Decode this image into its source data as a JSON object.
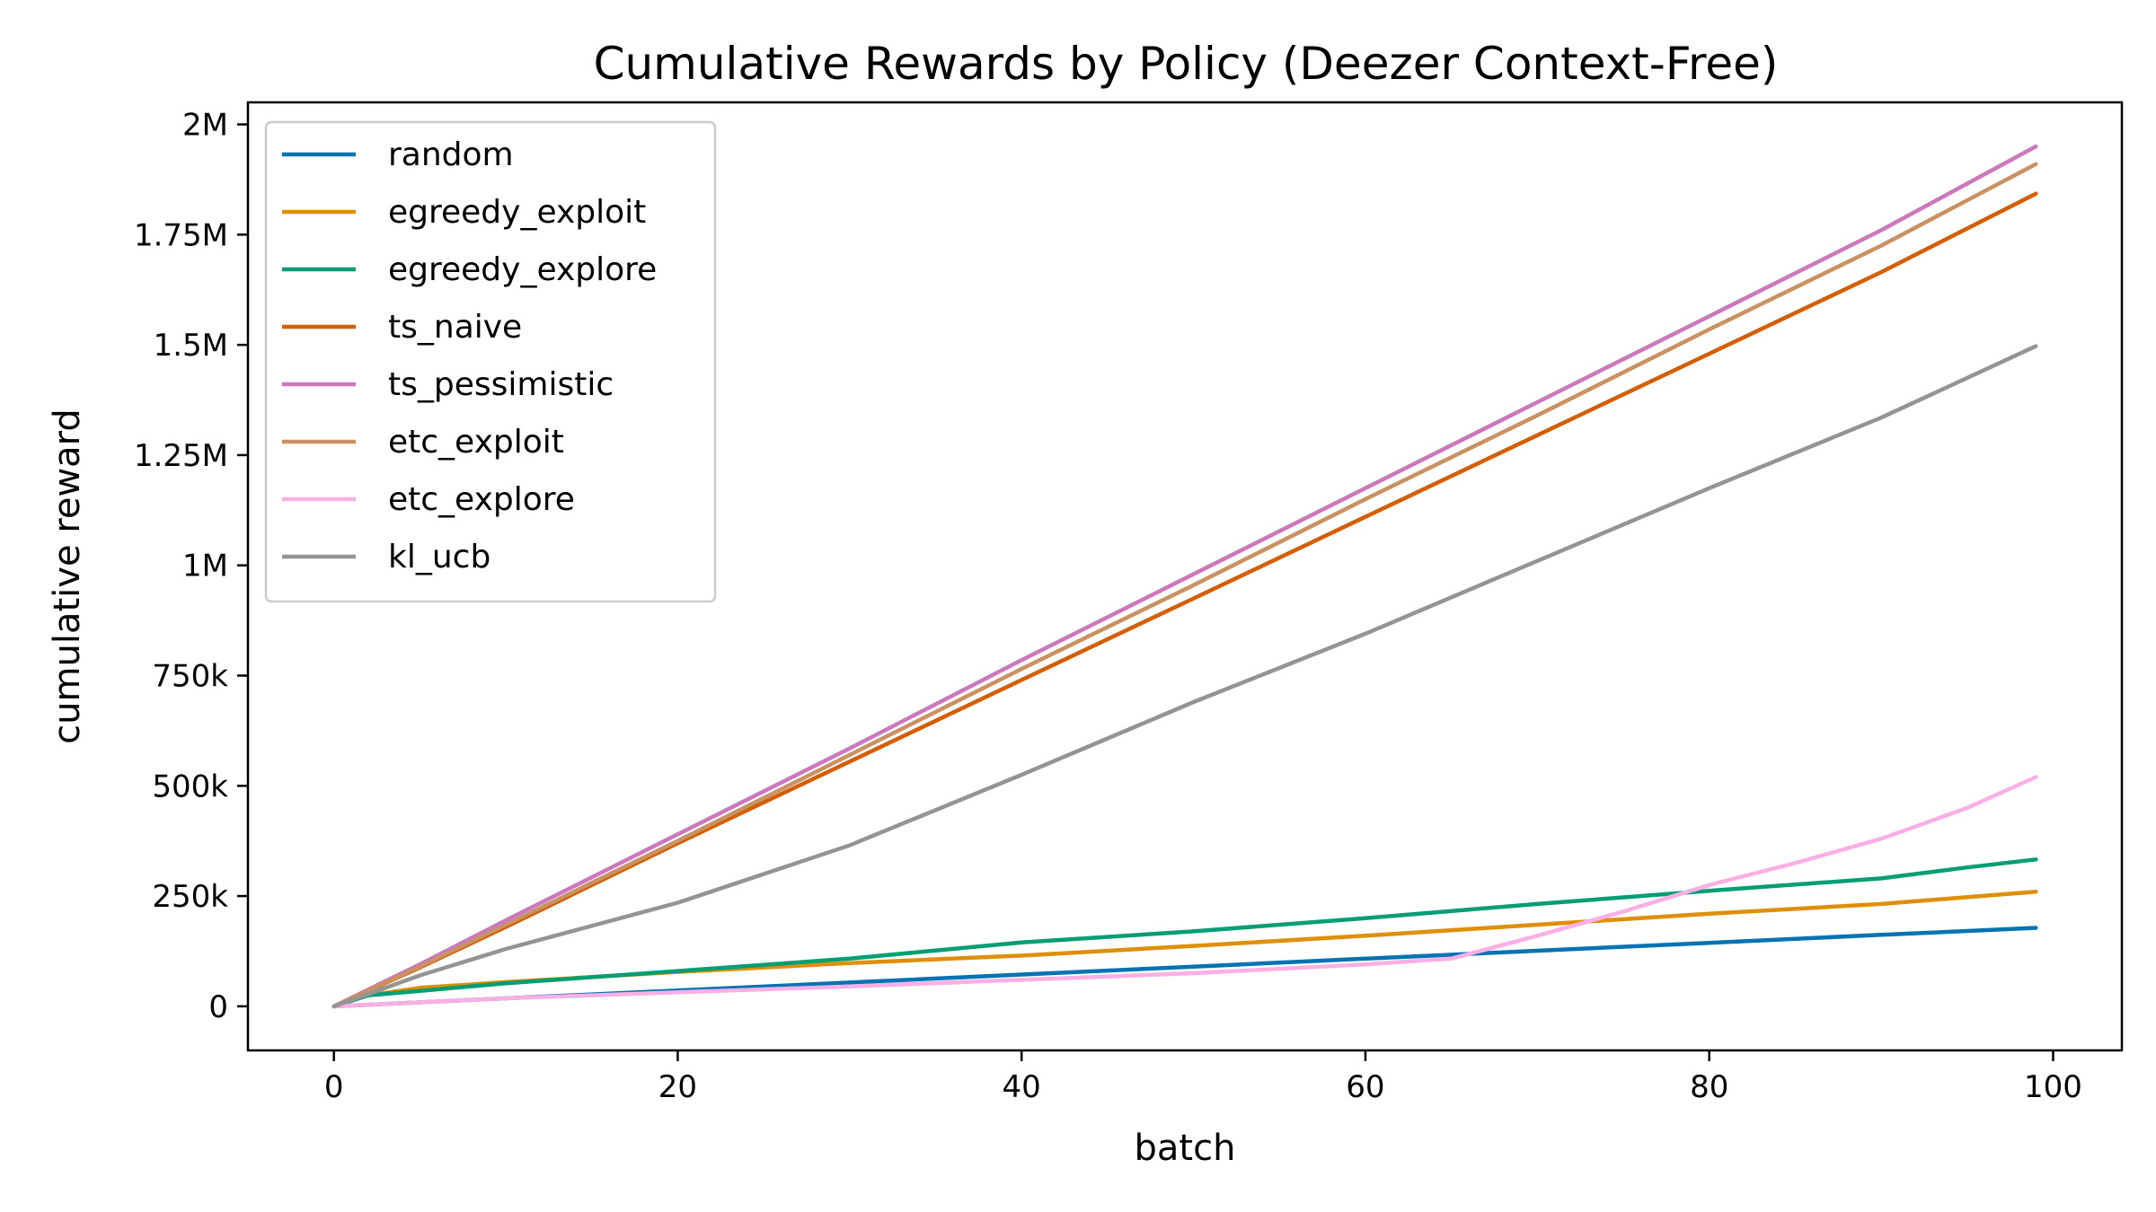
{
  "chart_data": {
    "type": "line",
    "title": "Cumulative Rewards by Policy (Deezer Context-Free)",
    "xlabel": "batch",
    "ylabel": "cumulative reward",
    "xlim": [
      -5,
      104
    ],
    "ylim": [
      -100000,
      2050000
    ],
    "xticks": [
      0,
      20,
      40,
      60,
      80,
      100
    ],
    "xtick_labels": [
      "0",
      "20",
      "40",
      "60",
      "80",
      "100"
    ],
    "yticks": [
      0,
      250000,
      500000,
      750000,
      1000000,
      1250000,
      1500000,
      1750000,
      2000000
    ],
    "ytick_labels": [
      "0",
      "250k",
      "500k",
      "750k",
      "1M",
      "1.25M",
      "1.5M",
      "1.75M",
      "2M"
    ],
    "grid": false,
    "legend_position": "top-left",
    "series": [
      {
        "name": "random",
        "color": "#0173b2",
        "points": [
          [
            0,
            0
          ],
          [
            10,
            18000
          ],
          [
            20,
            36000
          ],
          [
            30,
            54000
          ],
          [
            40,
            72000
          ],
          [
            50,
            90000
          ],
          [
            60,
            108000
          ],
          [
            70,
            126000
          ],
          [
            80,
            144000
          ],
          [
            90,
            162000
          ],
          [
            99,
            178000
          ]
        ]
      },
      {
        "name": "egreedy_exploit",
        "color": "#de8f05",
        "points": [
          [
            0,
            0
          ],
          [
            2,
            25000
          ],
          [
            5,
            42000
          ],
          [
            10,
            55000
          ],
          [
            20,
            78000
          ],
          [
            30,
            98000
          ],
          [
            40,
            115000
          ],
          [
            50,
            137000
          ],
          [
            60,
            160000
          ],
          [
            70,
            185000
          ],
          [
            80,
            210000
          ],
          [
            90,
            232000
          ],
          [
            99,
            260000
          ]
        ]
      },
      {
        "name": "egreedy_explore",
        "color": "#029e73",
        "points": [
          [
            0,
            0
          ],
          [
            2,
            25000
          ],
          [
            5,
            35000
          ],
          [
            10,
            52000
          ],
          [
            20,
            80000
          ],
          [
            30,
            108000
          ],
          [
            40,
            145000
          ],
          [
            50,
            170000
          ],
          [
            60,
            200000
          ],
          [
            70,
            232000
          ],
          [
            80,
            262000
          ],
          [
            90,
            290000
          ],
          [
            95,
            315000
          ],
          [
            99,
            333000
          ]
        ]
      },
      {
        "name": "ts_naive",
        "color": "#d55e00",
        "points": [
          [
            0,
            0
          ],
          [
            5,
            88000
          ],
          [
            10,
            180000
          ],
          [
            20,
            370000
          ],
          [
            30,
            555000
          ],
          [
            40,
            740000
          ],
          [
            50,
            925000
          ],
          [
            60,
            1110000
          ],
          [
            70,
            1295000
          ],
          [
            80,
            1480000
          ],
          [
            90,
            1665000
          ],
          [
            99,
            1843000
          ]
        ]
      },
      {
        "name": "ts_pessimistic",
        "color": "#cc78bc",
        "points": [
          [
            0,
            0
          ],
          [
            5,
            95000
          ],
          [
            10,
            195000
          ],
          [
            20,
            390000
          ],
          [
            30,
            585000
          ],
          [
            40,
            785000
          ],
          [
            50,
            980000
          ],
          [
            60,
            1175000
          ],
          [
            70,
            1370000
          ],
          [
            80,
            1565000
          ],
          [
            90,
            1760000
          ],
          [
            99,
            1950000
          ]
        ]
      },
      {
        "name": "etc_exploit",
        "color": "#ca9161",
        "points": [
          [
            0,
            0
          ],
          [
            5,
            90000
          ],
          [
            10,
            185000
          ],
          [
            20,
            375000
          ],
          [
            30,
            570000
          ],
          [
            40,
            765000
          ],
          [
            50,
            955000
          ],
          [
            60,
            1150000
          ],
          [
            70,
            1340000
          ],
          [
            80,
            1535000
          ],
          [
            90,
            1725000
          ],
          [
            99,
            1910000
          ]
        ]
      },
      {
        "name": "etc_explore",
        "color": "#fbafe4",
        "points": [
          [
            0,
            0
          ],
          [
            10,
            18000
          ],
          [
            20,
            32000
          ],
          [
            30,
            45000
          ],
          [
            40,
            60000
          ],
          [
            50,
            75000
          ],
          [
            60,
            95000
          ],
          [
            65,
            108000
          ],
          [
            70,
            160000
          ],
          [
            75,
            215000
          ],
          [
            80,
            275000
          ],
          [
            85,
            325000
          ],
          [
            90,
            380000
          ],
          [
            95,
            450000
          ],
          [
            99,
            520000
          ]
        ]
      },
      {
        "name": "kl_ucb",
        "color": "#949494",
        "points": [
          [
            0,
            0
          ],
          [
            5,
            70000
          ],
          [
            10,
            130000
          ],
          [
            20,
            235000
          ],
          [
            30,
            365000
          ],
          [
            40,
            525000
          ],
          [
            50,
            690000
          ],
          [
            60,
            845000
          ],
          [
            70,
            1010000
          ],
          [
            80,
            1175000
          ],
          [
            90,
            1335000
          ],
          [
            99,
            1497000
          ]
        ]
      }
    ]
  }
}
